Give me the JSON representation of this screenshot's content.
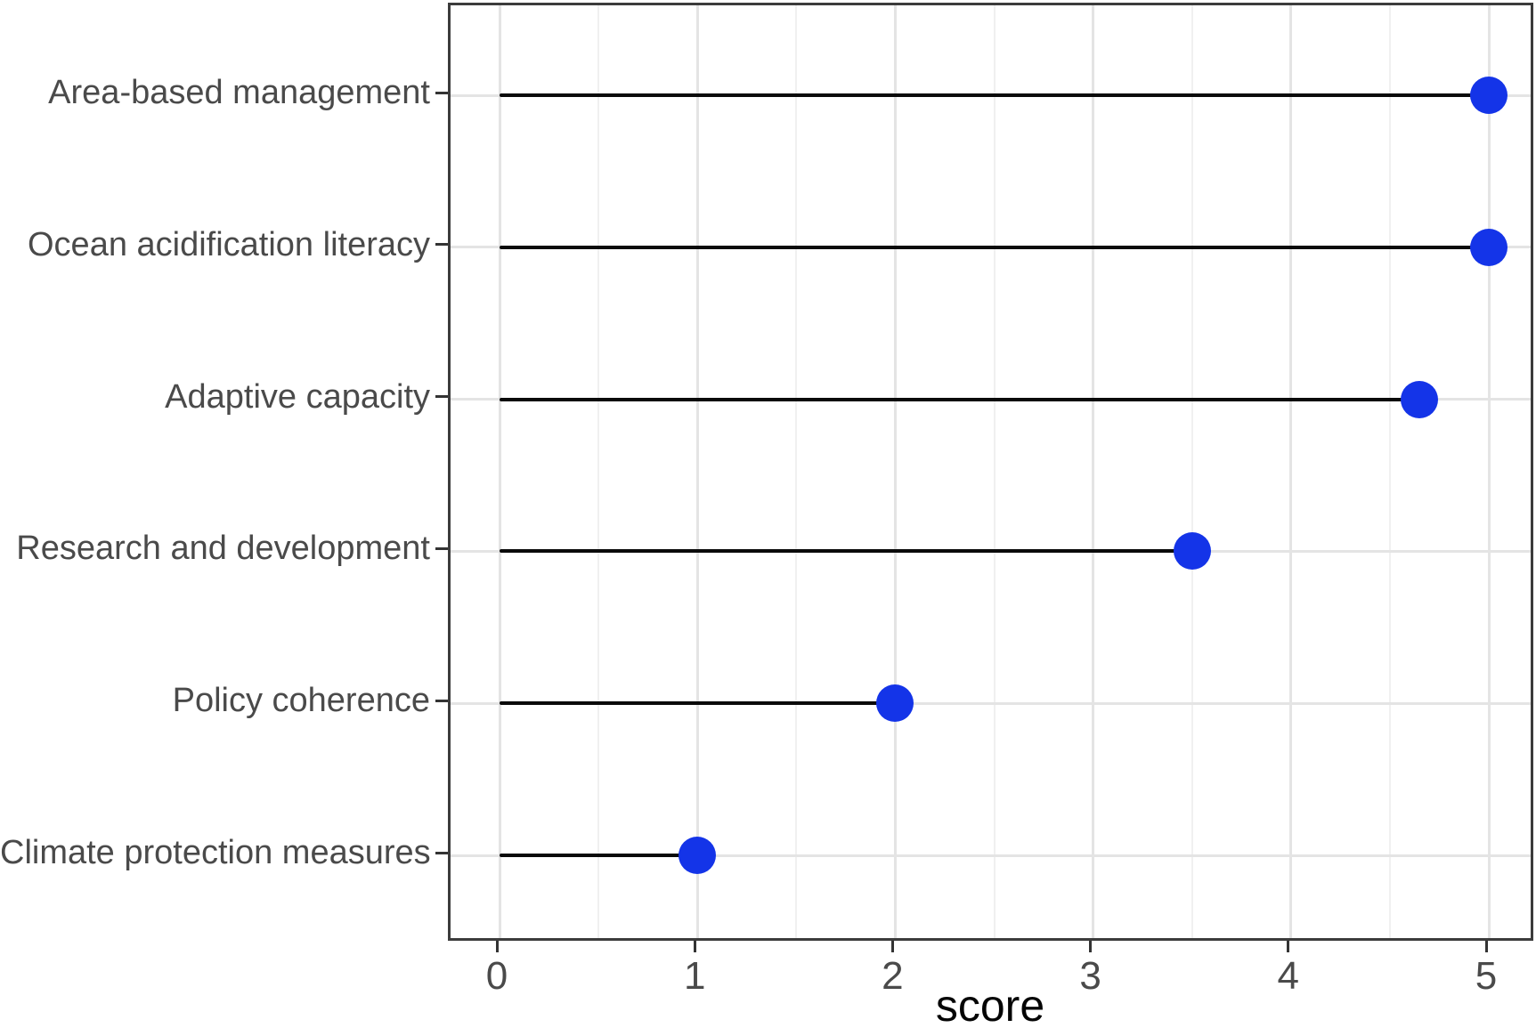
{
  "chart_data": {
    "type": "scatter",
    "variant": "horizontal-lollipop",
    "title": "",
    "categories": [
      "Area-based management",
      "Ocean acidification literacy",
      "Adaptive capacity",
      "Research and development",
      "Policy coherence",
      "Climate protection measures"
    ],
    "values": [
      5,
      5,
      4.65,
      3.5,
      2,
      1
    ],
    "xlabel": "score",
    "ylabel": "",
    "xlim": [
      -0.25,
      5.25
    ],
    "x_ticks": [
      0,
      1,
      2,
      3,
      4,
      5
    ],
    "x_tick_labels": [
      "0",
      "1",
      "2",
      "3",
      "4",
      "5"
    ],
    "x_minor_ticks": [
      0.5,
      1.5,
      2.5,
      3.5,
      4.5
    ],
    "grid": "vertical major+minor, horizontal major at category rows",
    "legend_position": "none",
    "stems_start_at": 0
  },
  "colors": {
    "point": "#1434e8",
    "stem": "#0a0a0a",
    "panel_border": "#3c3c3c",
    "grid_major": "#e4e4e4",
    "grid_minor": "#f0f0f0",
    "tick_mark": "#333333",
    "axis_text": "#4a4a4a",
    "axis_title": "#050505",
    "background": "#ffffff"
  }
}
